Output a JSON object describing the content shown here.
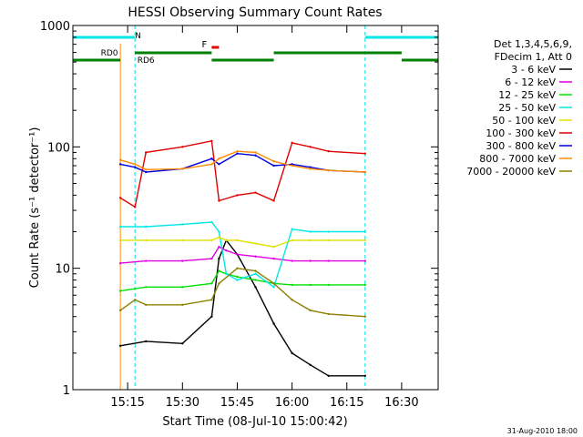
{
  "chart_data": {
    "type": "line",
    "title": "HESSI Observing Summary Count Rates",
    "xlabel": "Start Time (08-Jul-10 15:00:42)",
    "ylabel": "Count Rate (s⁻¹ detector⁻¹)",
    "yscale": "log",
    "ylim": [
      1,
      1000
    ],
    "xlim": [
      "15:00",
      "16:40"
    ],
    "x_ticks": [
      "15:15",
      "15:30",
      "15:45",
      "16:00",
      "16:15",
      "16:30"
    ],
    "y_ticks": [
      "1",
      "10",
      "100",
      "1000"
    ],
    "legend_header": [
      "Det 1,3,4,5,6,9,",
      "FDecim 1, Att 0"
    ],
    "legend_position": "right",
    "annotations": {
      "night_label": "N",
      "flare_label": "F",
      "rd0_label": "RD0",
      "rd6_label": "RD6"
    },
    "night_bands": [
      [
        "15:00",
        "15:17"
      ],
      [
        "16:20",
        "16:40"
      ]
    ],
    "data_gap": [
      "15:00",
      "15:13"
    ],
    "series": [
      {
        "name": "3 - 6 keV",
        "color": "#000000",
        "x": [
          "15:13",
          "15:20",
          "15:30",
          "15:38",
          "15:40",
          "15:42",
          "15:45",
          "15:50",
          "15:55",
          "16:00",
          "16:05",
          "16:10",
          "16:20"
        ],
        "values": [
          2.3,
          2.5,
          2.4,
          4,
          12,
          17,
          13,
          7,
          3.5,
          2.0,
          1.6,
          1.3,
          1.3
        ]
      },
      {
        "name": "6 - 12 keV",
        "color": "#e000e0",
        "x": [
          "15:13",
          "15:20",
          "15:30",
          "15:38",
          "15:40",
          "15:42",
          "15:45",
          "15:50",
          "15:55",
          "16:00",
          "16:05",
          "16:10",
          "16:20"
        ],
        "values": [
          11,
          11.5,
          11.5,
          12,
          15,
          14,
          13,
          12.5,
          12,
          11.5,
          11.5,
          11.5,
          11.5
        ]
      },
      {
        "name": "12 - 25 keV",
        "color": "#00e000",
        "x": [
          "15:13",
          "15:20",
          "15:30",
          "15:38",
          "15:40",
          "15:42",
          "15:45",
          "15:50",
          "15:55",
          "16:00",
          "16:05",
          "16:10",
          "16:20"
        ],
        "values": [
          6.5,
          7,
          7,
          7.5,
          9.5,
          9,
          8.5,
          8,
          7.5,
          7.3,
          7.3,
          7.3,
          7.3
        ]
      },
      {
        "name": "25 - 50 keV",
        "color": "#00e8e8",
        "x": [
          "15:13",
          "15:20",
          "15:30",
          "15:38",
          "15:40",
          "15:42",
          "15:45",
          "15:50",
          "15:55",
          "16:00",
          "16:05",
          "16:10",
          "16:20"
        ],
        "values": [
          22,
          22,
          23,
          24,
          20,
          9,
          8,
          9,
          7,
          21,
          20,
          20,
          20
        ]
      },
      {
        "name": "50 - 100 keV",
        "color": "#e0e000",
        "x": [
          "15:13",
          "15:20",
          "15:30",
          "15:38",
          "15:40",
          "15:42",
          "15:45",
          "15:50",
          "15:55",
          "16:00",
          "16:05",
          "16:10",
          "16:20"
        ],
        "values": [
          17,
          17,
          17,
          17,
          18,
          17,
          17,
          16,
          15,
          17,
          17,
          17,
          17
        ]
      },
      {
        "name": "100 - 300 keV",
        "color": "#e00000",
        "x": [
          "15:13",
          "15:17",
          "15:20",
          "15:30",
          "15:38",
          "15:40",
          "15:45",
          "15:50",
          "15:55",
          "16:00",
          "16:05",
          "16:10",
          "16:20"
        ],
        "values": [
          38,
          32,
          90,
          100,
          112,
          36,
          40,
          42,
          36,
          108,
          100,
          92,
          88
        ]
      },
      {
        "name": "300 - 800 keV",
        "color": "#0000e0",
        "x": [
          "15:13",
          "15:17",
          "15:20",
          "15:30",
          "15:38",
          "15:40",
          "15:45",
          "15:50",
          "15:55",
          "16:00",
          "16:05",
          "16:10",
          "16:20"
        ],
        "values": [
          72,
          68,
          62,
          66,
          80,
          72,
          88,
          85,
          70,
          72,
          68,
          64,
          62
        ]
      },
      {
        "name": "800 - 7000 keV",
        "color": "#ff8c00",
        "x": [
          "15:13",
          "15:17",
          "15:20",
          "15:30",
          "15:38",
          "15:40",
          "15:45",
          "15:50",
          "15:55",
          "16:00",
          "16:05",
          "16:10",
          "16:20"
        ],
        "values": [
          78,
          72,
          65,
          66,
          72,
          80,
          92,
          90,
          76,
          70,
          66,
          64,
          62
        ]
      },
      {
        "name": "7000 - 20000 keV",
        "color": "#8c8000",
        "x": [
          "15:13",
          "15:17",
          "15:20",
          "15:30",
          "15:38",
          "15:40",
          "15:45",
          "15:50",
          "15:55",
          "16:00",
          "16:05",
          "16:10",
          "16:20"
        ],
        "values": [
          4.5,
          5.5,
          5,
          5,
          5.5,
          7.5,
          10,
          9.5,
          7.5,
          5.5,
          4.5,
          4.2,
          4.0
        ]
      }
    ]
  },
  "footer": {
    "timestamp": "31-Aug-2010 18:00"
  }
}
